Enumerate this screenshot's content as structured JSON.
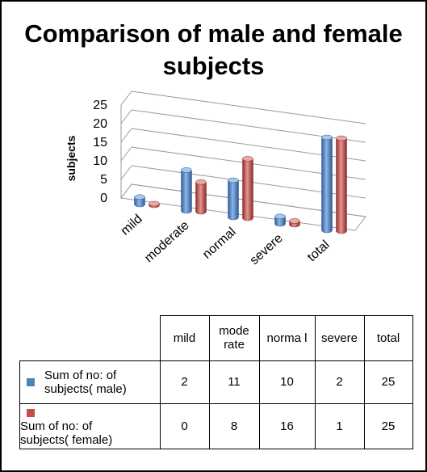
{
  "chart_data": {
    "type": "bar",
    "title": "Comparison of male and female subjects",
    "ylabel": "subjects",
    "xlabel": "",
    "ylim": [
      0,
      25
    ],
    "yticks": [
      0,
      5,
      10,
      15,
      20,
      25
    ],
    "categories": [
      "mild",
      "moderate",
      "normal",
      "severe",
      "total"
    ],
    "table_headers": [
      "mild",
      "mode rate",
      "norma l",
      "severe",
      "total"
    ],
    "series": [
      {
        "name": "Sum of no: of subjects( male)",
        "values": [
          2,
          11,
          10,
          2,
          25
        ],
        "color": "#4f81bd"
      },
      {
        "name": "Sum of no: of subjects( female)",
        "values": [
          0,
          8,
          16,
          1,
          25
        ],
        "color": "#c0504d"
      }
    ],
    "style": "3d-column",
    "grid": true,
    "legend": "data-table"
  }
}
